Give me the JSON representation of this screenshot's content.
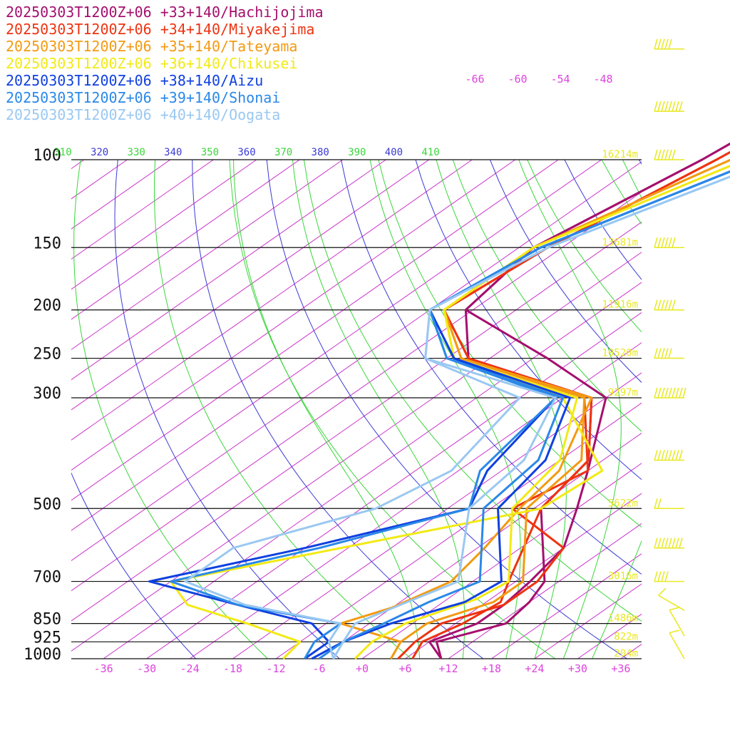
{
  "chart_data": {
    "type": "line",
    "title": "",
    "legend": [
      {
        "label": "20250303T1200Z+06 +33+140/Hachijojima",
        "color": "#a50f6e"
      },
      {
        "label": "20250303T1200Z+06 +34+140/Miyakejima",
        "color": "#ee3311"
      },
      {
        "label": "20250303T1200Z+06 +35+140/Tateyama",
        "color": "#f39a12"
      },
      {
        "label": "20250303T1200Z+06 +36+140/Chikusei",
        "color": "#f2ea14"
      },
      {
        "label": "20250303T1200Z+06 +38+140/Aizu",
        "color": "#1040e0"
      },
      {
        "label": "20250303T1200Z+06 +39+140/Shonai",
        "color": "#2a88e8"
      },
      {
        "label": "20250303T1200Z+06 +40+140/Oogata",
        "color": "#9ac8f2"
      }
    ],
    "pressure_levels": [
      {
        "label": "100",
        "p": 100,
        "height": "16214m"
      },
      {
        "label": "150",
        "p": 150,
        "height": "13681m"
      },
      {
        "label": "200",
        "p": 200,
        "height": "11916m"
      },
      {
        "label": "250",
        "p": 250,
        "height": "10520m"
      },
      {
        "label": "300",
        "p": 300,
        "height": "9297m"
      },
      {
        "label": "500",
        "p": 500,
        "height": "5622m"
      },
      {
        "label": "700",
        "p": 700,
        "height": "3016m"
      },
      {
        "label": "850",
        "p": 850,
        "height": "1486m"
      },
      {
        "label": "925",
        "p": 925,
        "height": "822m"
      },
      {
        "label": "1000",
        "p": 1000,
        "height": "204m"
      }
    ],
    "x_ticks": [
      "-36",
      "-30",
      "-24",
      "-18",
      "-12",
      "-6",
      "+0",
      "+6",
      "+12",
      "+18",
      "+24",
      "+30",
      "+36"
    ],
    "x_tick_values": [
      -36,
      -30,
      -24,
      -18,
      -12,
      -6,
      0,
      6,
      12,
      18,
      24,
      30,
      36
    ],
    "upper_temp_labels": [
      "-66",
      "-60",
      "-54",
      "-48"
    ],
    "theta_labels": [
      "310",
      "320",
      "330",
      "340",
      "350",
      "360",
      "370",
      "380",
      "390",
      "400",
      "410"
    ],
    "series": [
      {
        "name": "Hachijojima",
        "temp": [
          [
            1000,
            11
          ],
          [
            925,
            7
          ],
          [
            850,
            13
          ],
          [
            770,
            12
          ],
          [
            700,
            10
          ],
          [
            500,
            -5
          ],
          [
            400,
            -8
          ],
          [
            300,
            -20
          ],
          [
            250,
            -45
          ],
          [
            200,
            -55
          ],
          [
            150,
            -58
          ],
          [
            100,
            -52
          ],
          [
            60,
            -47
          ]
        ],
        "dewpoint": [
          [
            1000,
            11
          ],
          [
            925,
            6
          ],
          [
            850,
            9
          ],
          [
            780,
            9
          ],
          [
            700,
            8
          ],
          [
            600,
            6
          ],
          [
            500,
            0
          ],
          [
            420,
            -6
          ],
          [
            300,
            -18
          ],
          [
            250,
            -34
          ],
          [
            200,
            -55
          ],
          [
            150,
            -58
          ],
          [
            100,
            -52
          ],
          [
            60,
            -47
          ]
        ]
      },
      {
        "name": "Miyakejima",
        "temp": [
          [
            1000,
            7
          ],
          [
            925,
            5
          ],
          [
            850,
            7
          ],
          [
            770,
            8
          ],
          [
            700,
            5
          ],
          [
            500,
            -5
          ],
          [
            400,
            -8
          ],
          [
            300,
            -20
          ],
          [
            250,
            -45
          ],
          [
            200,
            -58
          ],
          [
            150,
            -56
          ],
          [
            100,
            -50
          ],
          [
            60,
            -44
          ]
        ],
        "dewpoint": [
          [
            1000,
            5
          ],
          [
            925,
            4
          ],
          [
            850,
            4
          ],
          [
            780,
            9
          ],
          [
            700,
            9
          ],
          [
            600,
            6
          ],
          [
            500,
            -9
          ],
          [
            420,
            -6
          ],
          [
            300,
            -21
          ],
          [
            250,
            -45
          ],
          [
            200,
            -58
          ],
          [
            150,
            -56
          ],
          [
            100,
            -50
          ],
          [
            60,
            -44
          ]
        ]
      },
      {
        "name": "Tateyama",
        "temp": [
          [
            1000,
            4
          ],
          [
            925,
            2
          ],
          [
            850,
            2
          ],
          [
            770,
            7
          ],
          [
            700,
            7
          ],
          [
            500,
            -7
          ],
          [
            400,
            -9
          ],
          [
            300,
            -21
          ],
          [
            250,
            -46
          ],
          [
            200,
            -58
          ],
          [
            150,
            -58
          ],
          [
            100,
            -48
          ],
          [
            60,
            -43
          ]
        ],
        "dewpoint": [
          [
            1000,
            4
          ],
          [
            925,
            2
          ],
          [
            850,
            -10
          ],
          [
            790,
            -6
          ],
          [
            700,
            -3
          ],
          [
            600,
            -5
          ],
          [
            500,
            -8
          ],
          [
            420,
            -10
          ],
          [
            300,
            -20
          ],
          [
            250,
            -46
          ],
          [
            200,
            -58
          ],
          [
            150,
            -58
          ],
          [
            100,
            -48
          ],
          [
            60,
            -43
          ]
        ]
      },
      {
        "name": "Chikusei",
        "temp": [
          [
            1000,
            -1
          ],
          [
            925,
            -2
          ],
          [
            850,
            -1
          ],
          [
            760,
            4
          ],
          [
            700,
            5
          ],
          [
            500,
            -9
          ],
          [
            400,
            -12
          ],
          [
            300,
            -22
          ],
          [
            250,
            -47
          ],
          [
            200,
            -58
          ],
          [
            150,
            -58
          ],
          [
            100,
            -46
          ],
          [
            60,
            -42
          ]
        ],
        "dewpoint": [
          [
            1000,
            -11
          ],
          [
            925,
            -12
          ],
          [
            850,
            -23
          ],
          [
            780,
            -35
          ],
          [
            700,
            -42
          ],
          [
            600,
            -25
          ],
          [
            500,
            -5
          ],
          [
            420,
            -4
          ],
          [
            300,
            -24
          ],
          [
            250,
            -47
          ],
          [
            200,
            -58
          ],
          [
            150,
            -58
          ],
          [
            100,
            -46
          ],
          [
            60,
            -42
          ]
        ]
      },
      {
        "name": "Aizu",
        "temp": [
          [
            1000,
            -7
          ],
          [
            925,
            -6
          ],
          [
            850,
            -3
          ],
          [
            770,
            3
          ],
          [
            700,
            4
          ],
          [
            500,
            -11
          ],
          [
            400,
            -14
          ],
          [
            300,
            -23
          ],
          [
            250,
            -47
          ],
          [
            200,
            -60
          ],
          [
            150,
            -57
          ],
          [
            100,
            -44
          ],
          [
            60,
            -40
          ]
        ],
        "dewpoint": [
          [
            1000,
            -8
          ],
          [
            925,
            -8
          ],
          [
            850,
            -14
          ],
          [
            780,
            -28
          ],
          [
            700,
            -45
          ],
          [
            600,
            -30
          ],
          [
            500,
            -15
          ],
          [
            420,
            -20
          ],
          [
            300,
            -25
          ],
          [
            250,
            -47
          ],
          [
            200,
            -60
          ],
          [
            150,
            -57
          ],
          [
            100,
            -44
          ],
          [
            60,
            -40
          ]
        ]
      },
      {
        "name": "Shonai",
        "temp": [
          [
            1000,
            -6
          ],
          [
            925,
            -6
          ],
          [
            850,
            -4
          ],
          [
            770,
            -2
          ],
          [
            700,
            1
          ],
          [
            500,
            -13
          ],
          [
            400,
            -15
          ],
          [
            300,
            -24
          ],
          [
            250,
            -48
          ],
          [
            200,
            -60
          ],
          [
            150,
            -57
          ],
          [
            100,
            -44
          ],
          [
            60,
            -40
          ]
        ],
        "dewpoint": [
          [
            1000,
            -8
          ],
          [
            925,
            -10
          ],
          [
            850,
            -10
          ],
          [
            780,
            -28
          ],
          [
            700,
            -42
          ],
          [
            600,
            -28
          ],
          [
            500,
            -15
          ],
          [
            420,
            -21
          ],
          [
            300,
            -25
          ],
          [
            250,
            -48
          ],
          [
            200,
            -60
          ],
          [
            150,
            -57
          ],
          [
            100,
            -44
          ],
          [
            60,
            -40
          ]
        ]
      },
      {
        "name": "Oogata",
        "temp": [
          [
            1000,
            -4
          ],
          [
            925,
            -6
          ],
          [
            850,
            -8
          ],
          [
            770,
            -5
          ],
          [
            700,
            -2
          ],
          [
            500,
            -15
          ],
          [
            400,
            -17
          ],
          [
            300,
            -25
          ],
          [
            250,
            -51
          ],
          [
            200,
            -60
          ],
          [
            150,
            -56
          ],
          [
            100,
            -42
          ],
          [
            60,
            -38
          ]
        ],
        "dewpoint": [
          [
            1000,
            -4
          ],
          [
            925,
            -8
          ],
          [
            850,
            -10
          ],
          [
            780,
            -27
          ],
          [
            700,
            -40
          ],
          [
            600,
            -40
          ],
          [
            500,
            -28
          ],
          [
            420,
            -25
          ],
          [
            300,
            -30
          ],
          [
            250,
            -51
          ],
          [
            200,
            -60
          ],
          [
            150,
            -56
          ],
          [
            100,
            -42
          ],
          [
            60,
            -38
          ]
        ]
      }
    ],
    "wind_barbs": [
      {
        "p": 60,
        "dir": 270,
        "speed": 50
      },
      {
        "p": 80,
        "dir": 270,
        "speed": 80
      },
      {
        "p": 100,
        "dir": 270,
        "speed": 60
      },
      {
        "p": 150,
        "dir": 270,
        "speed": 60
      },
      {
        "p": 200,
        "dir": 270,
        "speed": 60
      },
      {
        "p": 250,
        "dir": 270,
        "speed": 50
      },
      {
        "p": 300,
        "dir": 270,
        "speed": 90
      },
      {
        "p": 400,
        "dir": 270,
        "speed": 80
      },
      {
        "p": 500,
        "dir": 270,
        "speed": 20
      },
      {
        "p": 600,
        "dir": 270,
        "speed": 80
      },
      {
        "p": 700,
        "dir": 270,
        "speed": 40
      },
      {
        "p": 800,
        "dir": 300,
        "speed": 10
      },
      {
        "p": 900,
        "dir": 330,
        "speed": 10
      },
      {
        "p": 1000,
        "dir": 330,
        "speed": 10
      }
    ]
  }
}
